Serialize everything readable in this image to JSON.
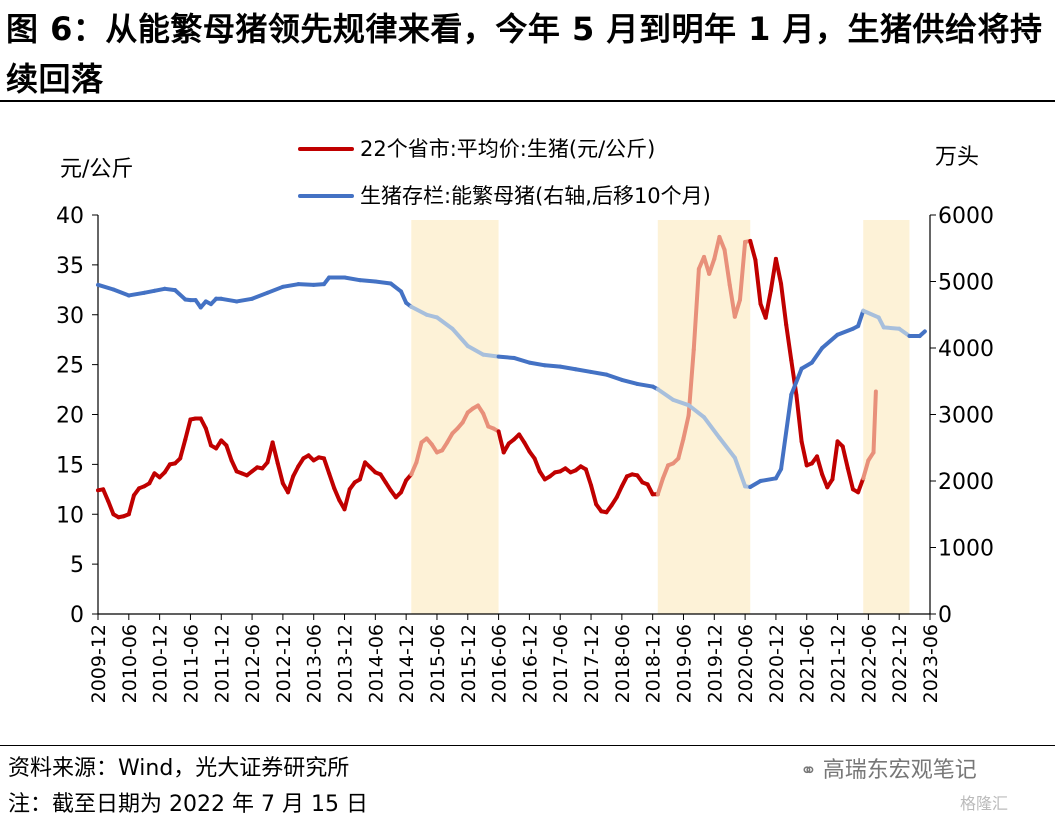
{
  "title": "图 6：从能繁母猪领先规律来看，今年 5 月到明年 1 月，生猪供给将持续回落",
  "source": "资料来源：Wind，光大证券研究所",
  "note": "注：截至日期为 2022 年 7 月 15 日",
  "watermark": "高瑞东宏观笔记",
  "watermark_icon": "wechat-icon",
  "watermark2": "格隆汇",
  "colors": {
    "price": "#C00000",
    "price_light": "#E8907A",
    "sows": "#4472C4",
    "sows_light": "#A7BFDC",
    "shade": "#FDF2D7"
  },
  "chart_data": {
    "type": "line",
    "left_unit": "元/公斤",
    "right_unit": "万头",
    "ylim_left": [
      0,
      40
    ],
    "ylim_right": [
      0,
      6000
    ],
    "yticks_left": [
      "40",
      "35",
      "30",
      "25",
      "20",
      "15",
      "10",
      "5",
      "0"
    ],
    "yticks_right": [
      "6000",
      "5000",
      "4000",
      "3000",
      "2000",
      "1000",
      "0"
    ],
    "xticks": [
      "2009-12",
      "2010-06",
      "2010-12",
      "2011-06",
      "2011-12",
      "2012-06",
      "2012-12",
      "2013-06",
      "2013-12",
      "2014-06",
      "2014-12",
      "2015-06",
      "2015-12",
      "2016-06",
      "2016-12",
      "2017-06",
      "2017-12",
      "2018-06",
      "2018-12",
      "2019-06",
      "2019-12",
      "2020-06",
      "2020-12",
      "2021-06",
      "2021-12",
      "2022-06",
      "2022-12",
      "2023-06"
    ],
    "shaded_periods": [
      [
        "2015-01",
        "2016-06"
      ],
      [
        "2019-01",
        "2020-07"
      ],
      [
        "2022-05",
        "2023-02"
      ]
    ],
    "series": [
      {
        "name": "22个省市:平均价:生猪(元/公斤)",
        "axis": "left",
        "points": [
          [
            "2009-12",
            12.4
          ],
          [
            "2010-01",
            12.5
          ],
          [
            "2010-02",
            11.3
          ],
          [
            "2010-03",
            10.0
          ],
          [
            "2010-04",
            9.7
          ],
          [
            "2010-05",
            9.8
          ],
          [
            "2010-06",
            10.0
          ],
          [
            "2010-07",
            11.9
          ],
          [
            "2010-08",
            12.6
          ],
          [
            "2010-09",
            12.8
          ],
          [
            "2010-10",
            13.1
          ],
          [
            "2010-11",
            14.1
          ],
          [
            "2010-12",
            13.7
          ],
          [
            "2011-01",
            14.2
          ],
          [
            "2011-02",
            15.0
          ],
          [
            "2011-03",
            15.1
          ],
          [
            "2011-04",
            15.6
          ],
          [
            "2011-05",
            17.5
          ],
          [
            "2011-06",
            19.5
          ],
          [
            "2011-07",
            19.6
          ],
          [
            "2011-08",
            19.6
          ],
          [
            "2011-09",
            18.6
          ],
          [
            "2011-10",
            16.9
          ],
          [
            "2011-11",
            16.6
          ],
          [
            "2011-12",
            17.4
          ],
          [
            "2012-01",
            16.9
          ],
          [
            "2012-02",
            15.4
          ],
          [
            "2012-03",
            14.3
          ],
          [
            "2012-04",
            14.1
          ],
          [
            "2012-05",
            13.9
          ],
          [
            "2012-06",
            14.3
          ],
          [
            "2012-07",
            14.7
          ],
          [
            "2012-08",
            14.6
          ],
          [
            "2012-09",
            15.2
          ],
          [
            "2012-10",
            17.2
          ],
          [
            "2012-11",
            15.1
          ],
          [
            "2012-12",
            13.1
          ],
          [
            "2013-01",
            12.2
          ],
          [
            "2013-02",
            13.8
          ],
          [
            "2013-03",
            14.8
          ],
          [
            "2013-04",
            15.6
          ],
          [
            "2013-05",
            15.9
          ],
          [
            "2013-06",
            15.4
          ],
          [
            "2013-07",
            15.7
          ],
          [
            "2013-08",
            15.6
          ],
          [
            "2013-09",
            14.1
          ],
          [
            "2013-10",
            12.6
          ],
          [
            "2013-11",
            11.4
          ],
          [
            "2013-12",
            10.5
          ],
          [
            "2014-01",
            12.5
          ],
          [
            "2014-02",
            13.2
          ],
          [
            "2014-03",
            13.5
          ],
          [
            "2014-04",
            15.2
          ],
          [
            "2014-05",
            14.7
          ],
          [
            "2014-06",
            14.2
          ],
          [
            "2014-07",
            14.0
          ],
          [
            "2014-08",
            13.2
          ],
          [
            "2014-09",
            12.4
          ],
          [
            "2014-10",
            11.7
          ],
          [
            "2014-11",
            12.2
          ],
          [
            "2014-12",
            13.4
          ],
          [
            "2015-01",
            14.0
          ],
          [
            "2015-02",
            15.2
          ],
          [
            "2015-03",
            17.2
          ],
          [
            "2015-04",
            17.6
          ],
          [
            "2015-05",
            17.0
          ],
          [
            "2015-06",
            16.2
          ],
          [
            "2015-07",
            16.4
          ],
          [
            "2015-08",
            17.2
          ],
          [
            "2015-09",
            18.1
          ],
          [
            "2015-10",
            18.6
          ],
          [
            "2015-11",
            19.2
          ],
          [
            "2015-12",
            20.2
          ],
          [
            "2016-01",
            20.6
          ],
          [
            "2016-02",
            20.9
          ],
          [
            "2016-03",
            20.1
          ],
          [
            "2016-04",
            18.8
          ],
          [
            "2016-05",
            18.6
          ],
          [
            "2016-06",
            18.3
          ],
          [
            "2016-07",
            16.2
          ],
          [
            "2016-08",
            17.1
          ],
          [
            "2016-09",
            17.5
          ],
          [
            "2016-10",
            18.0
          ],
          [
            "2016-11",
            17.2
          ],
          [
            "2016-12",
            16.3
          ],
          [
            "2017-01",
            15.6
          ],
          [
            "2017-02",
            14.3
          ],
          [
            "2017-03",
            13.5
          ],
          [
            "2017-04",
            13.8
          ],
          [
            "2017-05",
            14.2
          ],
          [
            "2017-06",
            14.3
          ],
          [
            "2017-07",
            14.6
          ],
          [
            "2017-08",
            14.2
          ],
          [
            "2017-09",
            14.4
          ],
          [
            "2017-10",
            14.8
          ],
          [
            "2017-11",
            14.5
          ],
          [
            "2017-12",
            12.9
          ],
          [
            "2018-01",
            11.0
          ],
          [
            "2018-02",
            10.3
          ],
          [
            "2018-03",
            10.2
          ],
          [
            "2018-04",
            10.9
          ],
          [
            "2018-05",
            11.7
          ],
          [
            "2018-06",
            12.8
          ],
          [
            "2018-07",
            13.8
          ],
          [
            "2018-08",
            14.0
          ],
          [
            "2018-09",
            13.9
          ],
          [
            "2018-10",
            13.2
          ],
          [
            "2018-11",
            13.0
          ],
          [
            "2018-12",
            12.0
          ],
          [
            "2019-01",
            12.0
          ],
          [
            "2019-02",
            13.6
          ],
          [
            "2019-03",
            14.9
          ],
          [
            "2019-04",
            15.1
          ],
          [
            "2019-05",
            15.6
          ],
          [
            "2019-06",
            17.6
          ],
          [
            "2019-07",
            19.9
          ],
          [
            "2019-08",
            26.5
          ],
          [
            "2019-09",
            34.6
          ],
          [
            "2019-10",
            35.8
          ],
          [
            "2019-11",
            34.1
          ],
          [
            "2019-12",
            35.6
          ],
          [
            "2020-01",
            37.8
          ],
          [
            "2020-02",
            36.5
          ],
          [
            "2020-03",
            33.0
          ],
          [
            "2020-04",
            29.8
          ],
          [
            "2020-05",
            31.5
          ],
          [
            "2020-06",
            37.3
          ],
          [
            "2020-07",
            37.4
          ],
          [
            "2020-08",
            35.5
          ],
          [
            "2020-09",
            31.1
          ],
          [
            "2020-10",
            29.7
          ],
          [
            "2020-11",
            32.4
          ],
          [
            "2020-12",
            35.6
          ],
          [
            "2021-01",
            33.1
          ],
          [
            "2021-02",
            29.0
          ],
          [
            "2021-03",
            25.4
          ],
          [
            "2021-04",
            21.9
          ],
          [
            "2021-05",
            17.3
          ],
          [
            "2021-06",
            14.9
          ],
          [
            "2021-07",
            15.1
          ],
          [
            "2021-08",
            15.8
          ],
          [
            "2021-09",
            14.0
          ],
          [
            "2021-10",
            12.7
          ],
          [
            "2021-11",
            13.5
          ],
          [
            "2021-12",
            17.3
          ],
          [
            "2022-01",
            16.8
          ],
          [
            "2022-02",
            14.6
          ],
          [
            "2022-03",
            12.5
          ],
          [
            "2022-04",
            12.2
          ],
          [
            "2022-05",
            13.6
          ],
          [
            "2022-06",
            15.4
          ],
          [
            "2022-07",
            16.2
          ],
          [
            "2022-07-15",
            22.3
          ]
        ]
      },
      {
        "name": "生猪存栏:能繁母猪(右轴,后移10个月)",
        "axis": "right",
        "points": [
          [
            "2009-12",
            4950
          ],
          [
            "2010-03",
            4880
          ],
          [
            "2010-06",
            4790
          ],
          [
            "2010-09",
            4830
          ],
          [
            "2010-11",
            4860
          ],
          [
            "2011-01",
            4890
          ],
          [
            "2011-03",
            4870
          ],
          [
            "2011-05",
            4730
          ],
          [
            "2011-06",
            4720
          ],
          [
            "2011-07",
            4720
          ],
          [
            "2011-08",
            4610
          ],
          [
            "2011-09",
            4700
          ],
          [
            "2011-10",
            4660
          ],
          [
            "2011-11",
            4740
          ],
          [
            "2011-12",
            4740
          ],
          [
            "2012-03",
            4700
          ],
          [
            "2012-06",
            4740
          ],
          [
            "2012-09",
            4830
          ],
          [
            "2012-12",
            4920
          ],
          [
            "2013-03",
            4960
          ],
          [
            "2013-06",
            4950
          ],
          [
            "2013-08",
            4960
          ],
          [
            "2013-09",
            5060
          ],
          [
            "2013-12",
            5060
          ],
          [
            "2014-03",
            5020
          ],
          [
            "2014-06",
            5000
          ],
          [
            "2014-09",
            4970
          ],
          [
            "2014-11",
            4850
          ],
          [
            "2014-12",
            4680
          ],
          [
            "2015-01",
            4620
          ],
          [
            "2015-04",
            4500
          ],
          [
            "2015-06",
            4460
          ],
          [
            "2015-09",
            4290
          ],
          [
            "2015-12",
            4030
          ],
          [
            "2016-03",
            3900
          ],
          [
            "2016-06",
            3870
          ],
          [
            "2016-09",
            3850
          ],
          [
            "2016-12",
            3780
          ],
          [
            "2017-03",
            3740
          ],
          [
            "2017-06",
            3720
          ],
          [
            "2017-09",
            3680
          ],
          [
            "2017-12",
            3640
          ],
          [
            "2018-03",
            3600
          ],
          [
            "2018-06",
            3520
          ],
          [
            "2018-09",
            3460
          ],
          [
            "2018-12",
            3420
          ],
          [
            "2019-01",
            3380
          ],
          [
            "2019-04",
            3220
          ],
          [
            "2019-07",
            3140
          ],
          [
            "2019-10",
            2960
          ],
          [
            "2020-01",
            2650
          ],
          [
            "2020-04",
            2350
          ],
          [
            "2020-06",
            1920
          ],
          [
            "2020-07",
            1910
          ],
          [
            "2020-09",
            2000
          ],
          [
            "2020-12",
            2040
          ],
          [
            "2021-01",
            2180
          ],
          [
            "2021-03",
            3300
          ],
          [
            "2021-05",
            3690
          ],
          [
            "2021-07",
            3780
          ],
          [
            "2021-09",
            4000
          ],
          [
            "2021-12",
            4200
          ],
          [
            "2022-03",
            4290
          ],
          [
            "2022-04",
            4330
          ],
          [
            "2022-05",
            4560
          ],
          [
            "2022-08",
            4460
          ],
          [
            "2022-09",
            4310
          ],
          [
            "2022-12",
            4290
          ],
          [
            "2023-02",
            4180
          ],
          [
            "2023-04",
            4180
          ],
          [
            "2023-05",
            4250
          ]
        ]
      }
    ],
    "highlight_rule": "segments inside shaded periods drawn in lighter shade"
  }
}
